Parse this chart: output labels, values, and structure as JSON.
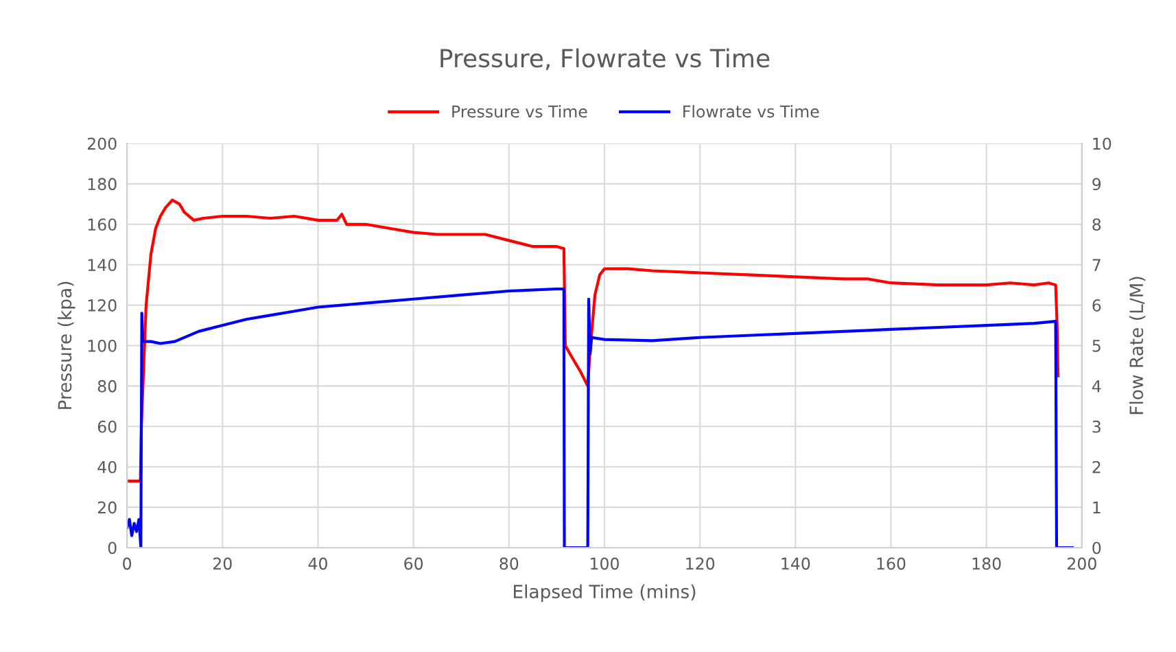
{
  "chart_data": {
    "type": "line",
    "title": "Pressure, Flowrate vs Time",
    "xlabel": "Elapsed Time (mins)",
    "ylabel": "Pressure (kpa)",
    "y2label": "Flow Rate (L/M)",
    "xlim": [
      0,
      200
    ],
    "xticks": [
      0,
      20,
      40,
      60,
      80,
      100,
      120,
      140,
      160,
      180,
      200
    ],
    "ylim": [
      0,
      200
    ],
    "yticks": [
      0,
      20,
      40,
      60,
      80,
      100,
      120,
      140,
      160,
      180,
      200
    ],
    "y2lim": [
      0,
      10
    ],
    "y2ticks": [
      0,
      1,
      2,
      3,
      4,
      5,
      6,
      7,
      8,
      9,
      10
    ],
    "grid": true,
    "legend": "top",
    "marker": "none",
    "line_style": "solid",
    "series": [
      {
        "name": "Pressure vs Time",
        "color": "#ff0000",
        "x": [
          0,
          2.8,
          3,
          3.5,
          4,
          5,
          6,
          7,
          8,
          9.5,
          11,
          12,
          14,
          16,
          20,
          25,
          30,
          35,
          40,
          44,
          45,
          46,
          50,
          55,
          60,
          65,
          70,
          75,
          80,
          85,
          90,
          91.5,
          91.8,
          93,
          95,
          96.5,
          97,
          98,
          99,
          100,
          105,
          110,
          120,
          130,
          140,
          150,
          155,
          160,
          170,
          180,
          185,
          190,
          193,
          194.5,
          194.8,
          195
        ],
        "values": [
          33,
          33,
          60,
          90,
          120,
          145,
          158,
          164,
          168,
          172,
          170,
          166,
          162,
          163,
          164,
          164,
          163,
          164,
          162,
          162,
          165,
          160,
          160,
          158,
          156,
          155,
          155,
          155,
          152,
          149,
          149,
          148,
          100,
          95,
          87,
          80,
          98,
          125,
          135,
          138,
          138,
          137,
          136,
          135,
          134,
          133,
          133,
          131,
          130,
          130,
          131,
          130,
          131,
          130,
          110,
          85
        ]
      },
      {
        "name": "Flowrate vs Time",
        "color": "#0000ff",
        "axis": "y2",
        "x": [
          0,
          0.5,
          1,
          1.5,
          2,
          2.5,
          2.9,
          3.1,
          3.3,
          5,
          7,
          10,
          15,
          20,
          25,
          30,
          35,
          40,
          50,
          60,
          70,
          80,
          90,
          91.5,
          91.6,
          96.5,
          96.7,
          97,
          97.3,
          100,
          110,
          120,
          130,
          140,
          150,
          160,
          170,
          180,
          190,
          194.5,
          194.7,
          198
        ],
        "values": [
          0.5,
          0.7,
          0.3,
          0.6,
          0.4,
          0.7,
          0,
          5.8,
          5.1,
          5.1,
          5.05,
          5.1,
          5.35,
          5.5,
          5.65,
          5.75,
          5.85,
          5.95,
          6.05,
          6.15,
          6.25,
          6.35,
          6.4,
          6.4,
          0,
          0,
          6.15,
          4.8,
          5.2,
          5.15,
          5.12,
          5.2,
          5.25,
          5.3,
          5.35,
          5.4,
          5.45,
          5.5,
          5.55,
          5.6,
          0,
          0
        ]
      }
    ]
  }
}
